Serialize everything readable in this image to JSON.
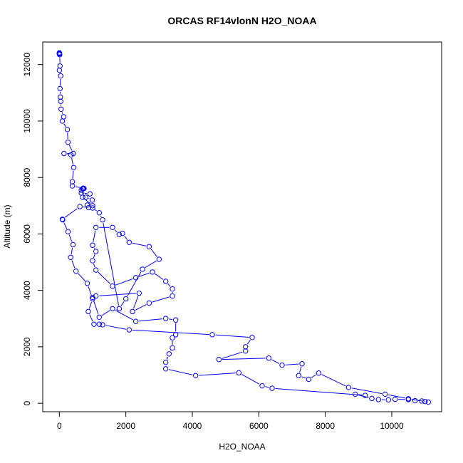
{
  "chart_data": {
    "type": "line",
    "title": "ORCAS RF14vlonN H2O_NOAA",
    "xlabel": "H2O_NOAA",
    "ylabel": "Altitude (m)",
    "xlim": [
      -500,
      11500
    ],
    "ylim": [
      -300,
      12800
    ],
    "xticks": [
      0,
      2000,
      4000,
      6000,
      8000,
      10000
    ],
    "yticks": [
      0,
      2000,
      4000,
      6000,
      8000,
      10000,
      12000
    ],
    "grid": false,
    "legend": "none",
    "series": [
      {
        "color": "#0000ff",
        "marker": "open-circle",
        "line": true,
        "points": [
          [
            0,
            12420
          ],
          [
            0,
            12400
          ],
          [
            0,
            12380
          ],
          [
            10,
            12350
          ],
          [
            20,
            11950
          ],
          [
            0,
            11800
          ],
          [
            40,
            11600
          ],
          [
            20,
            11150
          ],
          [
            30,
            10850
          ],
          [
            40,
            10700
          ],
          [
            50,
            10420
          ],
          [
            130,
            10150
          ],
          [
            90,
            10000
          ],
          [
            240,
            9700
          ],
          [
            260,
            9250
          ],
          [
            420,
            8850
          ],
          [
            140,
            8850
          ],
          [
            350,
            8800
          ],
          [
            430,
            8350
          ],
          [
            390,
            7850
          ],
          [
            390,
            7700
          ],
          [
            720,
            7620
          ],
          [
            740,
            7610
          ],
          [
            700,
            7600
          ],
          [
            660,
            7550
          ],
          [
            660,
            7450
          ],
          [
            920,
            7420
          ],
          [
            790,
            7300
          ],
          [
            990,
            7200
          ],
          [
            840,
            7020
          ],
          [
            880,
            6930
          ],
          [
            620,
            6970
          ],
          [
            90,
            6520
          ],
          [
            100,
            6500
          ],
          [
            260,
            6080
          ],
          [
            410,
            5620
          ],
          [
            340,
            5170
          ],
          [
            500,
            4680
          ],
          [
            840,
            4250
          ],
          [
            1000,
            3700
          ],
          [
            870,
            3250
          ],
          [
            1040,
            2800
          ],
          [
            1200,
            2800
          ],
          [
            1300,
            2780
          ],
          [
            2100,
            2600
          ],
          [
            4600,
            2430
          ],
          [
            5800,
            2330
          ],
          [
            5600,
            2000
          ],
          [
            5600,
            1850
          ],
          [
            4800,
            1550
          ],
          [
            6300,
            1600
          ],
          [
            6700,
            1350
          ],
          [
            7300,
            1400
          ],
          [
            7200,
            980
          ],
          [
            7500,
            850
          ],
          [
            7800,
            1070
          ],
          [
            8700,
            560
          ],
          [
            9800,
            320
          ],
          [
            10500,
            160
          ],
          [
            11000,
            60
          ],
          [
            11100,
            40
          ],
          [
            10900,
            80
          ],
          [
            10700,
            90
          ],
          [
            10500,
            130
          ],
          [
            10100,
            140
          ],
          [
            9900,
            120
          ],
          [
            9600,
            130
          ],
          [
            9400,
            170
          ],
          [
            8900,
            320
          ],
          [
            9200,
            280
          ],
          [
            6400,
            530
          ],
          [
            6100,
            620
          ],
          [
            5400,
            1080
          ],
          [
            4100,
            980
          ],
          [
            3200,
            1220
          ],
          [
            3200,
            1450
          ],
          [
            3300,
            1750
          ],
          [
            3400,
            1960
          ],
          [
            3400,
            2320
          ],
          [
            3500,
            2430
          ],
          [
            3500,
            2950
          ],
          [
            3200,
            3000
          ],
          [
            2300,
            2900
          ],
          [
            1600,
            3350
          ],
          [
            1200,
            3050
          ],
          [
            1000,
            3750
          ],
          [
            1100,
            3800
          ],
          [
            2400,
            3900
          ],
          [
            2200,
            3250
          ],
          [
            2700,
            3550
          ],
          [
            3400,
            3800
          ],
          [
            3400,
            4050
          ],
          [
            3200,
            4320
          ],
          [
            2800,
            4650
          ],
          [
            2300,
            4450
          ],
          [
            1600,
            4150
          ],
          [
            1100,
            4720
          ],
          [
            1000,
            5050
          ],
          [
            1100,
            5380
          ],
          [
            1000,
            5600
          ],
          [
            1100,
            6230
          ],
          [
            1600,
            6230
          ],
          [
            1800,
            5980
          ],
          [
            1900,
            6020
          ],
          [
            2100,
            5700
          ],
          [
            2700,
            5550
          ],
          [
            3000,
            5100
          ],
          [
            2500,
            4750
          ],
          [
            2000,
            3700
          ],
          [
            1800,
            3350
          ],
          [
            1300,
            6500
          ],
          [
            1200,
            6750
          ],
          [
            1000,
            6920
          ],
          [
            1000,
            7000
          ],
          [
            700,
            7300
          ],
          [
            700,
            7600
          ]
        ]
      }
    ]
  }
}
